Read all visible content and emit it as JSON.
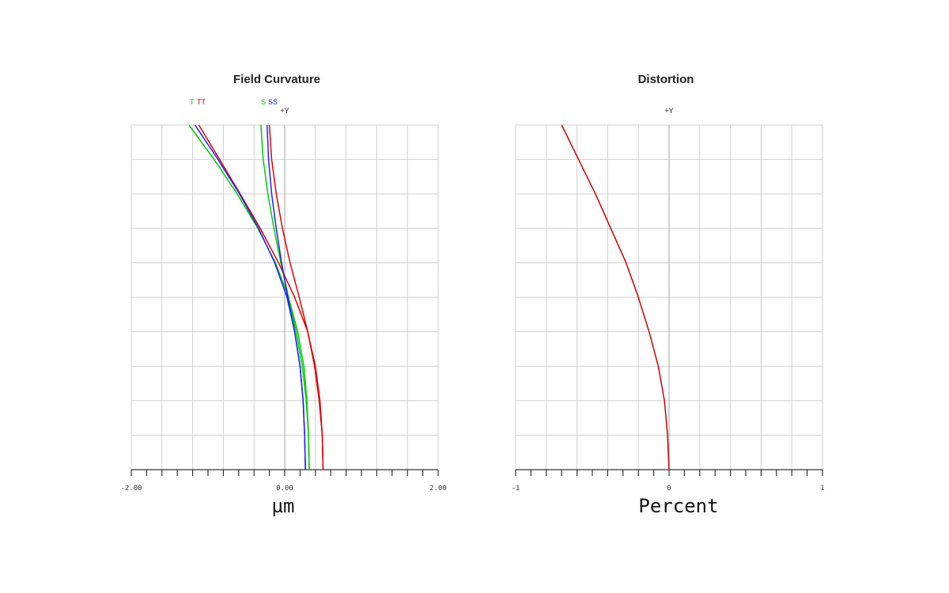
{
  "chart_data": [
    {
      "type": "line",
      "title": "Field Curvature",
      "xlabel": "µm",
      "ylabel": "",
      "xlim": [
        -2,
        2
      ],
      "ylim": [
        0,
        1
      ],
      "xticks_labeled": [
        "-2.00",
        "0.00",
        "2.00"
      ],
      "x_tick_step": 0.2,
      "grid": true,
      "axis_marker": "+Y",
      "legend": [
        {
          "text": "T",
          "color": "#00c000"
        },
        {
          "text": "TT",
          "color": "#e00000"
        },
        {
          "text": "S",
          "color": "#00c000"
        },
        {
          "text": "SS",
          "color": "#2020ff"
        }
      ],
      "series": [
        {
          "name": "T",
          "color": "#00cc00",
          "x": [
            0.32,
            0.31,
            0.29,
            0.25,
            0.17,
            0.05,
            -0.12,
            -0.35,
            -0.62,
            -0.92,
            -1.25
          ],
          "y": [
            0.0,
            0.1,
            0.2,
            0.3,
            0.4,
            0.5,
            0.6,
            0.7,
            0.8,
            0.9,
            1.0
          ]
        },
        {
          "name": "",
          "color": "#00cc00",
          "x": [
            0.32,
            0.31,
            0.28,
            0.23,
            0.15,
            0.05,
            -0.05,
            -0.14,
            -0.22,
            -0.28,
            -0.31
          ],
          "y": [
            0.0,
            0.1,
            0.2,
            0.3,
            0.4,
            0.5,
            0.6,
            0.7,
            0.8,
            0.9,
            1.0
          ]
        },
        {
          "name": "TT",
          "color": "#e00000",
          "x": [
            0.5,
            0.49,
            0.46,
            0.4,
            0.3,
            0.13,
            -0.08,
            -0.32,
            -0.58,
            -0.85,
            -1.12
          ],
          "y": [
            0.0,
            0.1,
            0.2,
            0.3,
            0.4,
            0.5,
            0.6,
            0.7,
            0.8,
            0.9,
            1.0
          ]
        },
        {
          "name": "",
          "color": "#e00000",
          "x": [
            0.5,
            0.49,
            0.45,
            0.39,
            0.3,
            0.19,
            0.07,
            -0.03,
            -0.11,
            -0.17,
            -0.2
          ],
          "y": [
            0.0,
            0.1,
            0.2,
            0.3,
            0.4,
            0.5,
            0.6,
            0.7,
            0.8,
            0.9,
            1.0
          ]
        },
        {
          "name": "SS",
          "color": "#2020ff",
          "x": [
            0.27,
            0.26,
            0.24,
            0.2,
            0.13,
            0.03,
            -0.13,
            -0.34,
            -0.59,
            -0.87,
            -1.17
          ],
          "y": [
            0.0,
            0.1,
            0.2,
            0.3,
            0.4,
            0.5,
            0.6,
            0.7,
            0.8,
            0.9,
            1.0
          ]
        },
        {
          "name": "",
          "color": "#2020ff",
          "x": [
            0.27,
            0.26,
            0.24,
            0.2,
            0.13,
            0.04,
            -0.04,
            -0.11,
            -0.17,
            -0.21,
            -0.23
          ],
          "y": [
            0.0,
            0.1,
            0.2,
            0.3,
            0.4,
            0.5,
            0.6,
            0.7,
            0.8,
            0.9,
            1.0
          ]
        }
      ]
    },
    {
      "type": "line",
      "title": "Distortion",
      "xlabel": "Percent",
      "ylabel": "",
      "xlim": [
        -1,
        1
      ],
      "ylim": [
        0,
        1
      ],
      "xticks_labeled": [
        "-1",
        "0",
        "1"
      ],
      "x_tick_step": 0.1,
      "grid": true,
      "axis_marker": "+Y",
      "series": [
        {
          "name": "",
          "color": "#cc0000",
          "x": [
            0.0,
            -0.01,
            -0.03,
            -0.07,
            -0.13,
            -0.2,
            -0.28,
            -0.38,
            -0.48,
            -0.59,
            -0.7
          ],
          "y": [
            0.0,
            0.1,
            0.2,
            0.3,
            0.4,
            0.5,
            0.6,
            0.7,
            0.8,
            0.9,
            1.0
          ]
        }
      ]
    }
  ]
}
